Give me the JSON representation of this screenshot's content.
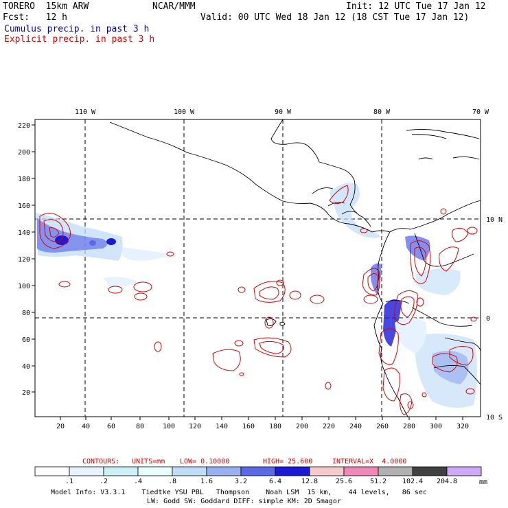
{
  "header": {
    "model": "TORERO  15km ARW",
    "org": "NCAR/MMM",
    "init": "Init: 12 UTC Tue 17 Jan 12",
    "fcst": "Fcst:   12 h",
    "valid": "Valid: 00 UTC Wed 18 Jan 12 (18 CST Tue 17 Jan 12)",
    "field1": "Cumulus precip. in past 3 h",
    "field2": "Explicit precip. in past 3 h"
  },
  "colors": {
    "field1": "#0000cc",
    "field2": "#dd0000",
    "contour": "#dd0000",
    "coast": "#000000"
  },
  "axes": {
    "x_ticks": [
      "20",
      "40",
      "60",
      "80",
      "100",
      "120",
      "140",
      "160",
      "180",
      "200",
      "220",
      "240",
      "260",
      "280",
      "300",
      "320"
    ],
    "y_ticks": [
      "20",
      "40",
      "60",
      "80",
      "100",
      "120",
      "140",
      "160",
      "180",
      "200",
      "220"
    ],
    "lon_labels": [
      "110 W",
      "100 W",
      "90 W",
      "80 W",
      "70 W"
    ],
    "lat_labels": [
      "10 N",
      "0",
      "10 S"
    ]
  },
  "contour_info": {
    "label": "CONTOURS:",
    "units": "UNITS=mm",
    "low": "LOW= 0.10000",
    "high": "HIGH= 25.600",
    "interval": "INTERVAL=X  4.0000"
  },
  "colorbar": {
    "labels": [
      ".1",
      ".2",
      ".4",
      ".8",
      "1.6",
      "3.2",
      "6.4",
      "12.8",
      "25.6",
      "51.2",
      "102.4",
      "204.8"
    ],
    "unit": "mm",
    "colors": [
      "#ffffff",
      "#e6f2ff",
      "#ccf0f8",
      "#e8fffe",
      "#c0dcf8",
      "#9ab0f0",
      "#5b68e8",
      "#1a1ad8",
      "#f4caca",
      "#ef8ab8",
      "#b0b0b0",
      "#404040",
      "#d0a8f8"
    ]
  },
  "footer": {
    "line1": "Model Info: V3.3.1    Tiedtke YSU PBL   Thompson    Noah LSM  15 km,    44 levels,   86 sec",
    "line2": "LW: Godd SW: Goddard DIFF: simple KM: 2D Smagor"
  }
}
